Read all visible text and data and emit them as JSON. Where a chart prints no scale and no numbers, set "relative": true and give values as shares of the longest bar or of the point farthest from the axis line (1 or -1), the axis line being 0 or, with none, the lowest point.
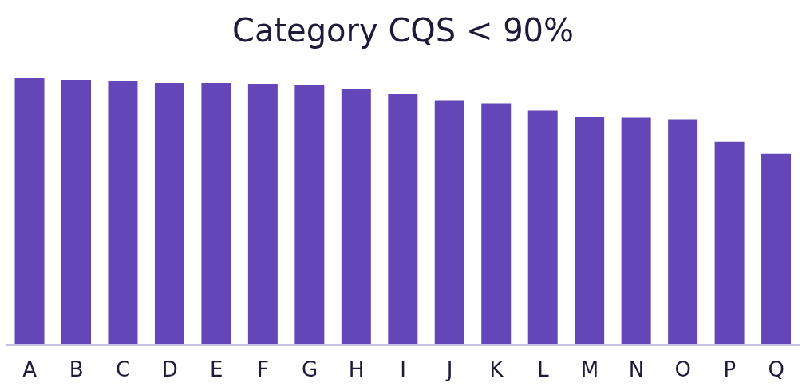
{
  "chart_data": {
    "type": "bar",
    "title": "Category CQS < 90%",
    "relative": true,
    "categories": [
      "A",
      "B",
      "C",
      "D",
      "E",
      "F",
      "G",
      "H",
      "I",
      "J",
      "K",
      "L",
      "M",
      "N",
      "O",
      "P",
      "Q"
    ],
    "values": [
      1,
      0.994,
      0.991,
      0.982,
      0.982,
      0.979,
      0.973,
      0.958,
      0.94,
      0.918,
      0.906,
      0.879,
      0.855,
      0.852,
      0.846,
      0.761,
      0.716
    ],
    "color": "#6347b8",
    "grid": false,
    "legend": false
  }
}
